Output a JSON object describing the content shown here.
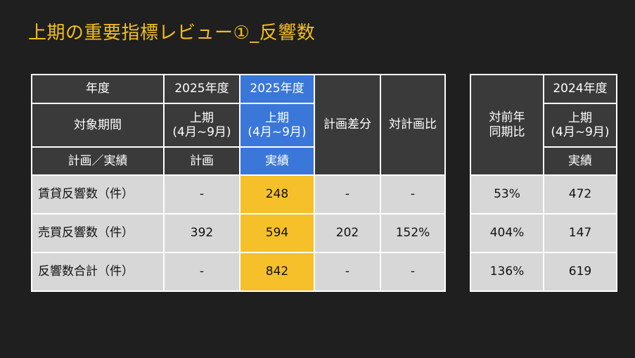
{
  "title": "上期の重要指標レビュー①_反響数",
  "main_table": {
    "header": {
      "row1": {
        "label": "年度",
        "plan": "2025年度",
        "actual": "2025年度"
      },
      "row2": {
        "label": "対象期間",
        "plan_line1": "上期",
        "plan_line2": "(4月~9月)",
        "actual_line1": "上期",
        "actual_line2": "(4月~9月)",
        "diff": "計画差分",
        "ratio": "対計画比"
      },
      "row3": {
        "label": "計画／実績",
        "plan": "計画",
        "actual": "実績"
      }
    },
    "rows": [
      {
        "label": "賃貸反響数（件）",
        "plan": "-",
        "actual": "248",
        "diff": "-",
        "ratio": "-"
      },
      {
        "label": "売買反響数（件）",
        "plan": "392",
        "actual": "594",
        "diff": "202",
        "ratio": "152%"
      },
      {
        "label": "反響数合計（件）",
        "plan": "-",
        "actual": "842",
        "diff": "-",
        "ratio": "-"
      }
    ]
  },
  "side_table": {
    "header": {
      "yoy_line1": "対前年",
      "yoy_line2": "同期比",
      "year": "2024年度",
      "period_line1": "上期",
      "period_line2": "(4月~9月)",
      "kind": "実績"
    },
    "rows": [
      {
        "yoy": "53%",
        "value": "472"
      },
      {
        "yoy": "404%",
        "value": "147"
      },
      {
        "yoy": "136%",
        "value": "619"
      }
    ]
  },
  "colors": {
    "background": "#1f1f1f",
    "title": "#f1bf1f",
    "header_dark": "#3a3a3a",
    "header_blue": "#3a77d8",
    "cell_gray": "#d7d7d7",
    "highlight_yellow": "#f5c02a"
  }
}
